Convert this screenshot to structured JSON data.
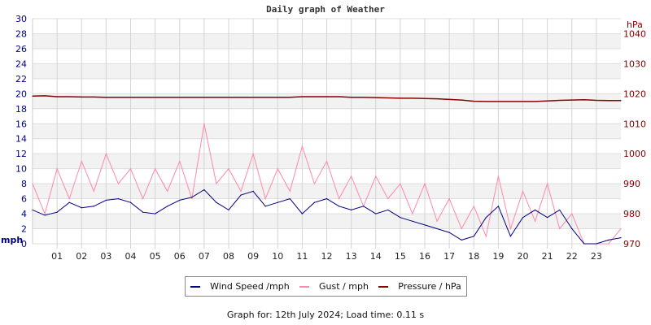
{
  "chart_data": {
    "type": "line",
    "title": "Daily graph of Weather",
    "left_axis": {
      "label": "mph",
      "ylim": [
        0,
        30
      ],
      "ticks": [
        0,
        2,
        4,
        6,
        8,
        10,
        12,
        14,
        16,
        18,
        20,
        22,
        24,
        26,
        28,
        30
      ],
      "color": "#000080"
    },
    "right_axis": {
      "label": "hPa",
      "ylim": [
        970,
        1045
      ],
      "ticks": [
        970,
        980,
        990,
        1000,
        1010,
        1020,
        1030,
        1040
      ],
      "color": "#800000"
    },
    "x_ticks": [
      "01",
      "02",
      "03",
      "04",
      "05",
      "06",
      "07",
      "08",
      "09",
      "10",
      "11",
      "12",
      "13",
      "14",
      "15",
      "16",
      "17",
      "18",
      "19",
      "20",
      "21",
      "22",
      "23"
    ],
    "x_range_hours": [
      0,
      24
    ],
    "grid": true,
    "legend_position": "bottom",
    "x_hours": [
      0,
      0.5,
      1,
      1.5,
      2,
      2.5,
      3,
      3.5,
      4,
      4.5,
      5,
      5.5,
      6,
      6.5,
      7,
      7.5,
      8,
      8.5,
      9,
      9.5,
      10,
      10.5,
      11,
      11.5,
      12,
      12.5,
      13,
      13.5,
      14,
      14.5,
      15,
      15.5,
      16,
      16.5,
      17,
      17.5,
      18,
      18.5,
      19,
      19.5,
      20,
      20.5,
      21,
      21.5,
      22,
      22.5,
      23,
      23.5,
      24
    ],
    "series": [
      {
        "name": "Wind Speed /mph",
        "color": "#000080",
        "axis": "left",
        "values": [
          4.5,
          3.8,
          4.2,
          5.5,
          4.8,
          5.0,
          5.8,
          6.0,
          5.5,
          4.2,
          4.0,
          5.0,
          5.8,
          6.2,
          7.2,
          5.5,
          4.5,
          6.5,
          7.0,
          5.0,
          5.5,
          6.0,
          4.0,
          5.5,
          6.0,
          5.0,
          4.5,
          5.0,
          4.0,
          4.5,
          3.5,
          3.0,
          2.5,
          2.0,
          1.5,
          0.5,
          1.0,
          3.5,
          5.0,
          1.0,
          3.5,
          4.5,
          3.5,
          4.5,
          2.0,
          0.0,
          0.0,
          0.5,
          0.8
        ]
      },
      {
        "name": "Gust / mph",
        "color": "#ff88aa",
        "axis": "left",
        "values": [
          8,
          4,
          10,
          6,
          11,
          7,
          12,
          8,
          10,
          6,
          10,
          7,
          11,
          6,
          16,
          8,
          10,
          7,
          12,
          6,
          10,
          7,
          13,
          8,
          11,
          6,
          9,
          5,
          9,
          6,
          8,
          4,
          8,
          3,
          6,
          2,
          5,
          1,
          9,
          2,
          7,
          3,
          8,
          2,
          4,
          0,
          0,
          0,
          2
        ]
      },
      {
        "name": "Pressure / hPa",
        "color": "#880000",
        "axis": "right",
        "values": [
          1019.2,
          1019.3,
          1019.0,
          1019.0,
          1018.9,
          1018.9,
          1018.8,
          1018.8,
          1018.8,
          1018.8,
          1018.8,
          1018.8,
          1018.8,
          1018.8,
          1018.8,
          1018.8,
          1018.8,
          1018.8,
          1018.8,
          1018.8,
          1018.8,
          1018.8,
          1019.0,
          1019.0,
          1019.0,
          1019.0,
          1018.8,
          1018.8,
          1018.7,
          1018.6,
          1018.5,
          1018.5,
          1018.4,
          1018.3,
          1018.1,
          1017.9,
          1017.5,
          1017.4,
          1017.4,
          1017.4,
          1017.4,
          1017.4,
          1017.6,
          1017.8,
          1017.9,
          1018.0,
          1017.8,
          1017.7,
          1017.7
        ]
      }
    ]
  },
  "legend": {
    "items": [
      "Wind Speed /mph",
      "Gust / mph",
      "Pressure / hPa"
    ]
  },
  "footer": "Graph for: 12th July 2024; Load time: 0.11 s"
}
